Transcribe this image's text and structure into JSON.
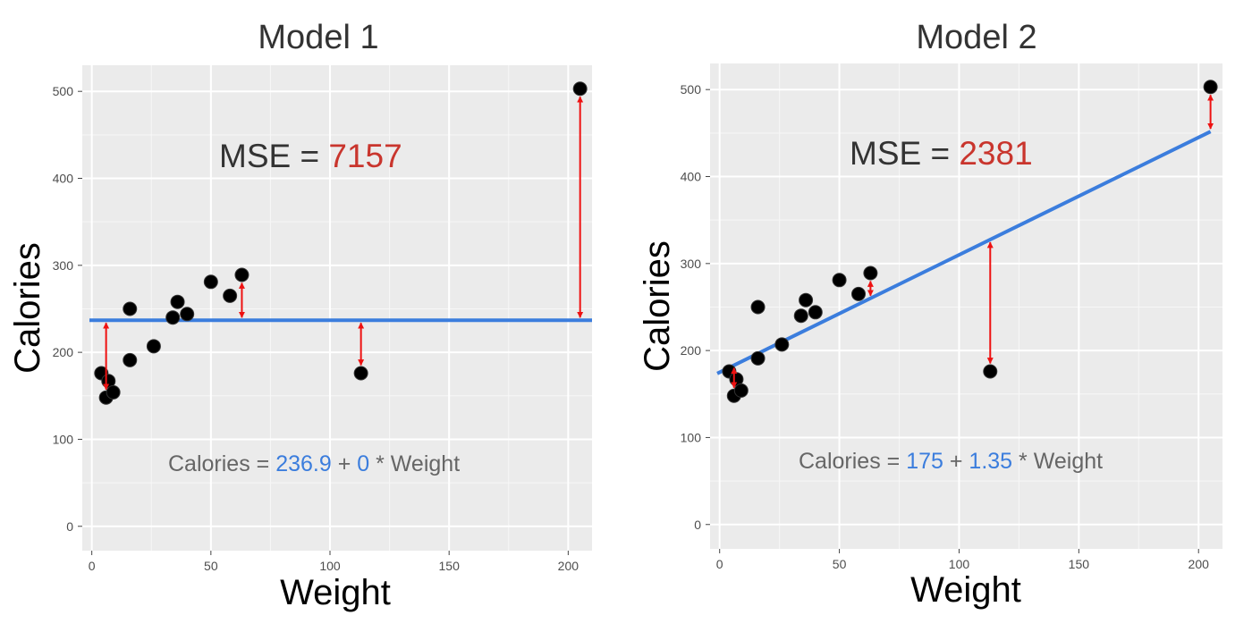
{
  "chart_data": [
    {
      "type": "scatter",
      "title": "Model 1",
      "xlabel": "Weight",
      "ylabel": "Calories",
      "xlim": [
        -4,
        210
      ],
      "ylim": [
        -28,
        530
      ],
      "x_ticks": [
        0,
        50,
        100,
        150,
        200
      ],
      "y_ticks": [
        0,
        100,
        200,
        300,
        400,
        500
      ],
      "grid": true,
      "points": [
        {
          "x": 4,
          "y": 176
        },
        {
          "x": 6,
          "y": 148
        },
        {
          "x": 7,
          "y": 167
        },
        {
          "x": 9,
          "y": 154
        },
        {
          "x": 16,
          "y": 191
        },
        {
          "x": 16,
          "y": 250
        },
        {
          "x": 26,
          "y": 207
        },
        {
          "x": 34,
          "y": 240
        },
        {
          "x": 36,
          "y": 258
        },
        {
          "x": 40,
          "y": 244
        },
        {
          "x": 50,
          "y": 281
        },
        {
          "x": 58,
          "y": 265
        },
        {
          "x": 63,
          "y": 289
        },
        {
          "x": 113,
          "y": 176
        },
        {
          "x": 205,
          "y": 503
        }
      ],
      "fit_line": {
        "intercept": 236.9,
        "slope": 0,
        "x_range": [
          -1,
          210
        ]
      },
      "residuals": [
        {
          "x": 6,
          "y_point": 148,
          "y_line": 236.9
        },
        {
          "x": 63,
          "y_point": 289,
          "y_line": 236.9
        },
        {
          "x": 113,
          "y_point": 176,
          "y_line": 236.9
        },
        {
          "x": 205,
          "y_point": 503,
          "y_line": 236.9
        }
      ],
      "mse_label": "MSE = ",
      "mse_value": "7157",
      "equation": {
        "prefix": "Calories = ",
        "intercept": "236.9",
        "plus": " + ",
        "slope": "0",
        "suffix": " * Weight"
      },
      "colors": {
        "line": "#3b7ddd",
        "residual": "#ee1111",
        "mse_value": "#c9352d",
        "coef": "#3b7ddd",
        "panel": "#ebebeb",
        "grid": "#ffffff",
        "point": "#000000"
      }
    },
    {
      "type": "scatter",
      "title": "Model 2",
      "xlabel": "Weight",
      "ylabel": "Calories",
      "xlim": [
        -4,
        210
      ],
      "ylim": [
        -28,
        530
      ],
      "x_ticks": [
        0,
        50,
        100,
        150,
        200
      ],
      "y_ticks": [
        0,
        100,
        200,
        300,
        400,
        500
      ],
      "grid": true,
      "points": [
        {
          "x": 4,
          "y": 176
        },
        {
          "x": 6,
          "y": 148
        },
        {
          "x": 7,
          "y": 167
        },
        {
          "x": 9,
          "y": 154
        },
        {
          "x": 16,
          "y": 191
        },
        {
          "x": 16,
          "y": 250
        },
        {
          "x": 26,
          "y": 207
        },
        {
          "x": 34,
          "y": 240
        },
        {
          "x": 36,
          "y": 258
        },
        {
          "x": 40,
          "y": 244
        },
        {
          "x": 50,
          "y": 281
        },
        {
          "x": 58,
          "y": 265
        },
        {
          "x": 63,
          "y": 289
        },
        {
          "x": 113,
          "y": 176
        },
        {
          "x": 205,
          "y": 503
        }
      ],
      "fit_line": {
        "intercept": 175,
        "slope": 1.35,
        "x_range": [
          -1,
          205
        ]
      },
      "residuals": [
        {
          "x": 6,
          "y_point": 148,
          "y_line": 183
        },
        {
          "x": 63,
          "y_point": 289,
          "y_line": 260
        },
        {
          "x": 113,
          "y_point": 176,
          "y_line": 327.5
        },
        {
          "x": 205,
          "y_point": 503,
          "y_line": 451.8
        }
      ],
      "mse_label": "MSE = ",
      "mse_value": "2381",
      "equation": {
        "prefix": "Calories = ",
        "intercept": "175",
        "plus": " + ",
        "slope": "1.35",
        "suffix": " * Weight"
      },
      "colors": {
        "line": "#3b7ddd",
        "residual": "#ee1111",
        "mse_value": "#c9352d",
        "coef": "#3b7ddd",
        "panel": "#ebebeb",
        "grid": "#ffffff",
        "point": "#000000"
      }
    }
  ]
}
